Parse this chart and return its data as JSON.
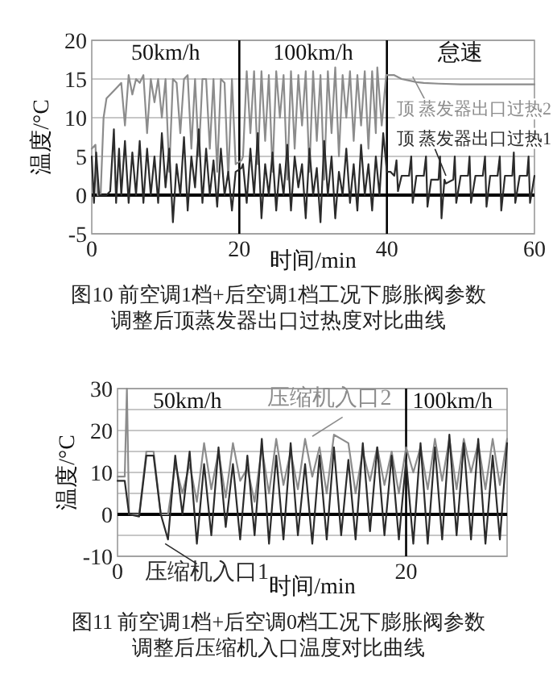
{
  "chart_data": [
    {
      "type": "line",
      "title": "图10  前空调1档+后空调1档工况下膨胀阀参数调整后顶蒸发器出口过热度对比曲线",
      "xlabel": "时间/min",
      "ylabel": "温度/°C",
      "xlim": [
        0,
        60
      ],
      "ylim": [
        -5,
        20
      ],
      "xticks": [
        0,
        20,
        40,
        60
      ],
      "yticks": [
        -5,
        0,
        5,
        10,
        15,
        20
      ],
      "grid": "y",
      "marker": "none",
      "line_style": "solid",
      "ref_lines": [
        {
          "axis": "x",
          "value": 20,
          "color": "#000000"
        },
        {
          "axis": "x",
          "value": 40,
          "color": "#000000"
        },
        {
          "axis": "y",
          "value": 0,
          "color": "#000000"
        }
      ],
      "annotations": [
        "50km/h",
        "100km/h",
        "怠速"
      ],
      "series": [
        {
          "name": "顶 蒸发器出口过热2",
          "color": "#8c8c8c",
          "x": [
            0,
            0.5,
            0.8,
            1.2,
            1.6,
            2,
            3,
            4,
            4.5,
            5,
            5.5,
            6,
            6.5,
            7,
            7.5,
            8,
            8.5,
            9,
            9.5,
            10,
            10.5,
            11,
            11.5,
            12,
            12.5,
            13,
            13.5,
            14,
            14.5,
            15,
            15.5,
            16,
            16.5,
            17,
            17.5,
            18,
            18.5,
            19,
            19.5,
            20.3,
            20.5,
            21,
            21.5,
            22,
            22.5,
            23,
            23.5,
            24,
            24.5,
            25,
            25.5,
            26,
            26.5,
            27,
            27.5,
            28,
            28.5,
            29,
            29.5,
            30,
            30.5,
            31,
            31.5,
            32,
            32.5,
            33,
            33.5,
            34,
            34.5,
            35,
            35.5,
            36,
            36.5,
            37,
            37.5,
            38,
            38.5,
            38.7,
            39.3,
            39.9,
            40,
            41,
            42,
            43,
            44,
            45,
            47,
            50,
            55,
            60
          ],
          "values": [
            6,
            6.5,
            0,
            0,
            10,
            12.5,
            13.5,
            14.5,
            9,
            15.5,
            13,
            15,
            14.5,
            15.5,
            8,
            15,
            12,
            15,
            10,
            15,
            3,
            15,
            14.5,
            8,
            15,
            15.5,
            6,
            15,
            5,
            15,
            15,
            6,
            15,
            3,
            15,
            14.5,
            2,
            15,
            4,
            4.5,
            5,
            16,
            8,
            16,
            4,
            16,
            7,
            15.5,
            3,
            16,
            10,
            15.5,
            2,
            16,
            6,
            15.5,
            9,
            16,
            3,
            16,
            7,
            15.5,
            2,
            16,
            8,
            16.5,
            5,
            15.5,
            10,
            16,
            7,
            15.5,
            9,
            16,
            6,
            16,
            8,
            16.5,
            9,
            15.5,
            15.5,
            15.5,
            15,
            14.8,
            14.6,
            14.5,
            14.4,
            14.3,
            14.3,
            14.3
          ]
        },
        {
          "name": "顶 蒸发器出口过热1",
          "color": "#2b2b2b",
          "x": [
            0,
            0.3,
            0.6,
            1,
            1.5,
            2,
            2.5,
            3,
            3.3,
            3.7,
            4,
            4.5,
            5,
            5.5,
            6,
            6.5,
            7,
            7.5,
            8,
            8.5,
            9,
            9.5,
            10,
            10.5,
            11,
            11.5,
            12,
            12.5,
            13,
            13.5,
            14,
            14.5,
            15,
            15.5,
            16,
            16.5,
            17,
            17.5,
            18,
            18.5,
            19,
            19.5,
            20.3,
            20.5,
            21,
            21.5,
            22,
            22.5,
            23,
            23.5,
            24,
            24.5,
            25,
            25.5,
            26,
            26.5,
            27,
            27.5,
            28,
            28.5,
            29,
            29.5,
            30,
            30.5,
            31,
            31.5,
            32,
            32.5,
            33,
            33.5,
            34,
            34.5,
            35,
            35.5,
            36,
            36.5,
            37,
            37.5,
            38,
            38.5,
            39,
            39.5,
            40,
            40.5,
            41,
            41.3,
            41.5,
            42,
            43,
            43.3,
            43.5,
            44,
            45,
            45.3,
            45.5,
            46,
            47,
            47.2,
            47.4,
            47.8,
            48,
            49,
            49.2,
            49.4,
            50,
            51,
            51.2,
            51.4,
            52,
            53,
            53.3,
            53.5,
            54,
            55,
            55.3,
            55.5,
            56,
            57,
            57.2,
            57.4,
            58,
            59,
            59.2,
            59.4,
            60
          ],
          "values": [
            5,
            -1,
            5.5,
            0,
            0,
            0,
            0.5,
            8.5,
            -1,
            6,
            0,
            7,
            -1,
            5.5,
            0,
            7,
            -1,
            6,
            0,
            5,
            -1,
            8,
            1,
            6,
            -3.5,
            4,
            0,
            7.5,
            -2,
            5,
            1,
            8.5,
            -1,
            6,
            0,
            4.5,
            -1.5,
            6,
            0,
            3,
            -2,
            3,
            3.5,
            4,
            -1,
            6,
            0,
            8,
            -3,
            4,
            0,
            5.5,
            -2,
            4,
            0,
            6.5,
            -2,
            5,
            1,
            4,
            -3,
            6,
            0,
            3.5,
            -3.5,
            7,
            0,
            5,
            -3,
            3,
            0,
            6,
            -1,
            4,
            -2,
            6.5,
            0,
            4,
            -2,
            5,
            0,
            8,
            3,
            3,
            2.5,
            4.5,
            0.5,
            2.5,
            2.5,
            5,
            -1,
            2.5,
            2.5,
            5,
            -1.5,
            2,
            2,
            5,
            -3,
            2,
            1.5,
            2,
            5,
            -1,
            2.5,
            2.5,
            5,
            -1,
            2.5,
            2.5,
            5,
            -1.5,
            2.5,
            2.5,
            5,
            -2,
            2.5,
            2.5,
            5.5,
            -1,
            2.5,
            2.5,
            5,
            -1,
            2.5
          ]
        }
      ]
    },
    {
      "type": "line",
      "title": "图11  前空调1档+后空调0档工况下膨胀阀参数调整后压缩机入口温度对比曲线",
      "xlabel": "时间/min",
      "ylabel": "温度/°C",
      "xlim": [
        0,
        27
      ],
      "ylim": [
        -10,
        30
      ],
      "xticks": [
        0,
        20
      ],
      "yticks": [
        -10,
        {
          "value": -5,
          "label": null
        },
        0,
        {
          "value": 5,
          "label": null
        },
        10,
        {
          "value": 15,
          "label": null
        },
        20,
        {
          "value": 25,
          "label": null
        },
        30
      ],
      "grid": "y",
      "marker": "none",
      "line_style": "solid",
      "ref_lines": [
        {
          "axis": "x",
          "value": 20,
          "color": "#000000"
        },
        {
          "axis": "y",
          "value": 0,
          "color": "#000000"
        }
      ],
      "annotations": [
        "50km/h",
        "100km/h"
      ],
      "series": [
        {
          "name": "压缩机入口2",
          "color": "#8c8c8c",
          "x": [
            0,
            0.5,
            0.65,
            0.8,
            1.5,
            2,
            2.5,
            3,
            3.5,
            4,
            4.5,
            5,
            5.5,
            6,
            6.5,
            7,
            7.5,
            8,
            8.5,
            9,
            9.5,
            10,
            10.5,
            11,
            11.5,
            12,
            12.5,
            13,
            13.5,
            14,
            14.5,
            15,
            15.5,
            16,
            16.5,
            17,
            17.5,
            18,
            18.5,
            19,
            19.5,
            20,
            20.5,
            21,
            21.5,
            22,
            22.5,
            23,
            23.5,
            24,
            24.5,
            25,
            25.5,
            26,
            26.5,
            27
          ],
          "values": [
            9,
            9,
            30,
            0,
            0,
            15,
            15,
            0,
            0,
            12,
            5,
            12,
            3,
            17,
            6,
            15,
            4,
            17,
            8,
            11,
            3,
            16,
            5,
            18,
            7,
            15,
            6,
            18,
            9,
            16,
            5,
            19,
            18,
            17,
            5,
            15,
            8,
            16,
            7,
            15,
            5,
            16,
            10,
            16,
            6,
            18,
            8,
            18,
            6,
            18,
            10,
            17,
            6,
            18,
            7,
            18
          ]
        },
        {
          "name": "压缩机入口1",
          "color": "#2b2b2b",
          "x": [
            0,
            0.5,
            0.8,
            1.5,
            2,
            2.5,
            3,
            3.5,
            4,
            4.5,
            5,
            5.5,
            6,
            6.5,
            7,
            7.5,
            8,
            8.5,
            9,
            9.5,
            10,
            10.5,
            11,
            11.5,
            12,
            12.5,
            13,
            13.5,
            14,
            14.5,
            15,
            15.5,
            16,
            16.5,
            17,
            17.5,
            18,
            18.5,
            19,
            19.5,
            20,
            20.5,
            21,
            21.5,
            22,
            22.5,
            23,
            23.5,
            24,
            24.5,
            25,
            25.5,
            26,
            26.5,
            27
          ],
          "values": [
            8,
            8,
            0,
            -0.5,
            14,
            14,
            0,
            -6,
            14,
            0,
            15,
            -7,
            12,
            -5,
            16,
            -3,
            12,
            -6,
            14,
            -5,
            18,
            -7,
            14,
            -6,
            17,
            -5,
            12,
            -7,
            14,
            -6,
            16,
            -5,
            13,
            -6,
            17,
            -4,
            16,
            -5,
            14,
            -6,
            13,
            -7,
            17,
            -7,
            16,
            -6,
            19,
            -5,
            17,
            -6,
            18,
            -7,
            14,
            -6,
            17
          ]
        }
      ]
    }
  ]
}
